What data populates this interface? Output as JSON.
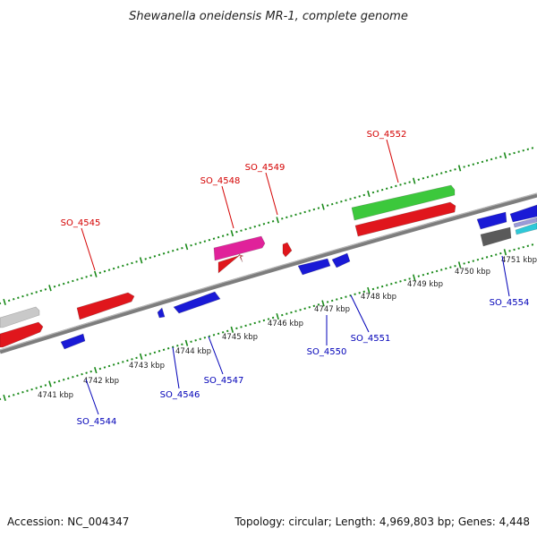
{
  "title": "Shewanella oneidensis MR-1, complete genome",
  "footer": {
    "accession": "Accession: NC_004347",
    "summary": "Topology: circular; Length: 4,969,803 bp; Genes: 4,448"
  },
  "colors": {
    "backbone": "#7d7d7d",
    "forward_label": "#d40000",
    "reverse_label": "#0000b8",
    "tick": "#1a8a1a",
    "red": "#e0161c",
    "blue": "#1a1ad6",
    "green": "#3cc83c",
    "magenta": "#e0229a",
    "lightgray": "#c9c9c9",
    "darkgray": "#5a5a5a",
    "cyan": "#2ec8d8"
  },
  "kbp_labels": [
    "4741 kbp",
    "4742 kbp",
    "4743 kbp",
    "4744 kbp",
    "4745 kbp",
    "4746 kbp",
    "4747 kbp",
    "4748 kbp",
    "4749 kbp",
    "4750 kbp",
    "4751 kbp"
  ],
  "forward_genes": [
    "SO_4545",
    "SO_4548",
    "SO_4549",
    "SO_4552"
  ],
  "reverse_genes": [
    "SO_4544",
    "SO_4546",
    "SO_4547",
    "SO_4550",
    "SO_4551",
    "SO_4554"
  ]
}
